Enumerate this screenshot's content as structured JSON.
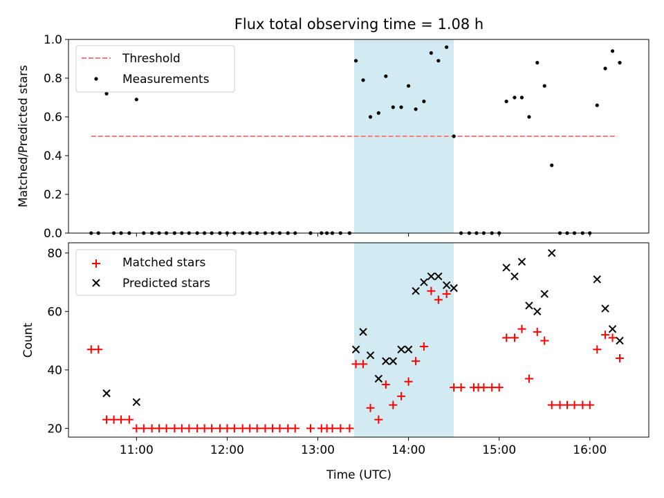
{
  "chart_data": [
    {
      "type": "scatter",
      "title": "Flux total observing time = 1.08 h",
      "ylabel": "Matched/Predicted stars",
      "ylim": [
        0.0,
        1.0
      ],
      "yticks": [
        "0.0",
        "0.2",
        "0.4",
        "0.6",
        "0.8",
        "1.0"
      ],
      "xlim_hours": [
        10.25,
        16.65
      ],
      "highlight_span_hours": [
        13.4,
        14.5
      ],
      "highlight_color": "#add8e6",
      "legend": {
        "position": "upper-left",
        "entries": [
          "Threshold",
          "Measurements"
        ]
      },
      "threshold": {
        "name": "Threshold",
        "value": 0.5,
        "x_range_hours": [
          10.5,
          16.3
        ],
        "color": "#f08080",
        "style": "dashed"
      },
      "series": [
        {
          "name": "Measurements",
          "color": "#000000",
          "marker": "dot",
          "x": [
            10.5,
            10.58,
            10.67,
            10.75,
            10.83,
            10.92,
            11.0,
            11.08,
            11.17,
            11.25,
            11.33,
            11.42,
            11.5,
            11.58,
            11.67,
            11.75,
            11.83,
            11.92,
            12.0,
            12.08,
            12.17,
            12.25,
            12.33,
            12.42,
            12.5,
            12.58,
            12.67,
            12.75,
            12.92,
            13.04,
            13.1,
            13.16,
            13.25,
            13.35,
            13.42,
            13.5,
            13.58,
            13.67,
            13.75,
            13.83,
            13.92,
            14.0,
            14.08,
            14.17,
            14.25,
            14.33,
            14.42,
            14.5,
            14.58,
            14.67,
            14.75,
            14.83,
            14.92,
            15.0,
            15.08,
            15.17,
            15.25,
            15.33,
            15.42,
            15.5,
            15.58,
            15.67,
            15.75,
            15.83,
            15.92,
            16.0,
            16.08,
            16.17,
            16.25,
            16.33
          ],
          "y": [
            0,
            0,
            0.72,
            0,
            0,
            0,
            0.69,
            0,
            0,
            0,
            0,
            0,
            0,
            0,
            0,
            0,
            0,
            0,
            0,
            0,
            0,
            0,
            0,
            0,
            0,
            0,
            0,
            0,
            0,
            0,
            0,
            0,
            0,
            0,
            0.89,
            0.79,
            0.6,
            0.62,
            0.81,
            0.65,
            0.65,
            0.76,
            0.64,
            0.68,
            0.93,
            0.89,
            0.96,
            0.5,
            0,
            0,
            0,
            0,
            0,
            0,
            0.68,
            0.7,
            0.7,
            0.6,
            0.88,
            0.76,
            0.35,
            0,
            0,
            0,
            0,
            0,
            0.66,
            0.85,
            0.94,
            0.88
          ]
        }
      ]
    },
    {
      "type": "scatter",
      "xlabel": "Time (UTC)",
      "ylabel": "Count",
      "ylim": [
        17,
        83.5
      ],
      "yticks": [
        "20",
        "40",
        "60",
        "80"
      ],
      "xticks": [
        "11:00",
        "12:00",
        "13:00",
        "14:00",
        "15:00",
        "16:00"
      ],
      "xlim_hours": [
        10.25,
        16.65
      ],
      "highlight_span_hours": [
        13.4,
        14.5
      ],
      "highlight_color": "#add8e6",
      "legend": {
        "position": "upper-left",
        "entries": [
          "Matched stars",
          "Predicted stars"
        ]
      },
      "series": [
        {
          "name": "Matched stars",
          "color": "#ff0000",
          "marker": "plus",
          "x": [
            10.5,
            10.58,
            10.67,
            10.75,
            10.83,
            10.92,
            11.0,
            11.08,
            11.17,
            11.25,
            11.33,
            11.42,
            11.5,
            11.58,
            11.67,
            11.75,
            11.83,
            11.92,
            12.0,
            12.08,
            12.17,
            12.25,
            12.33,
            12.42,
            12.5,
            12.58,
            12.67,
            12.75,
            12.92,
            13.04,
            13.1,
            13.16,
            13.25,
            13.35,
            13.42,
            13.5,
            13.58,
            13.67,
            13.75,
            13.83,
            13.92,
            14.0,
            14.08,
            14.17,
            14.25,
            14.33,
            14.42,
            14.5,
            14.58,
            14.72,
            14.77,
            14.83,
            14.92,
            15.0,
            15.08,
            15.17,
            15.25,
            15.33,
            15.42,
            15.5,
            15.58,
            15.67,
            15.75,
            15.83,
            15.92,
            16.0,
            16.08,
            16.17,
            16.25,
            16.33
          ],
          "y": [
            47,
            47,
            23,
            23,
            23,
            23,
            20,
            20,
            20,
            20,
            20,
            20,
            20,
            20,
            20,
            20,
            20,
            20,
            20,
            20,
            20,
            20,
            20,
            20,
            20,
            20,
            20,
            20,
            20,
            20,
            20,
            20,
            20,
            20,
            42,
            42,
            27,
            23,
            35,
            28,
            31,
            36,
            43,
            48,
            67,
            64,
            66,
            34,
            34,
            34,
            34,
            34,
            34,
            34,
            51,
            51,
            54,
            37,
            53,
            50,
            28,
            28,
            28,
            28,
            28,
            28,
            47,
            52,
            51,
            44
          ]
        },
        {
          "name": "Predicted stars",
          "color": "#000000",
          "marker": "x",
          "x": [
            10.67,
            11.0,
            13.42,
            13.5,
            13.58,
            13.67,
            13.75,
            13.83,
            13.92,
            14.0,
            14.08,
            14.17,
            14.25,
            14.33,
            14.42,
            14.5,
            15.08,
            15.17,
            15.25,
            15.33,
            15.42,
            15.5,
            15.58,
            16.08,
            16.17,
            16.25,
            16.33
          ],
          "y": [
            32,
            29,
            47,
            53,
            45,
            37,
            43,
            43,
            47,
            47,
            67,
            70,
            72,
            72,
            69,
            68,
            75,
            72,
            77,
            62,
            60,
            66,
            80,
            71,
            61,
            54,
            50
          ]
        }
      ]
    }
  ]
}
